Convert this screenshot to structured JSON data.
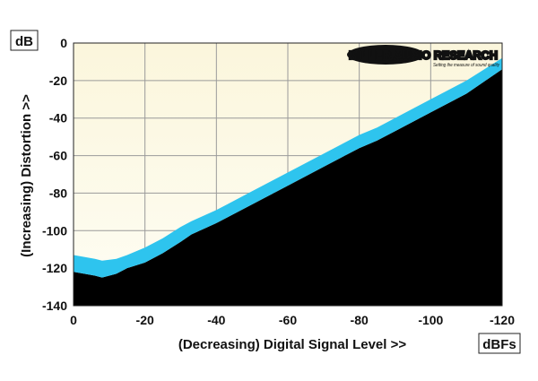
{
  "chart_data": {
    "type": "area",
    "xlabel": "(Decreasing) Digital Signal Level >>",
    "ylabel": "(Increasing) Distortion >>",
    "x_unit": "dBFs",
    "y_unit": "dB",
    "xlim": [
      0,
      -120
    ],
    "ylim": [
      -140,
      0
    ],
    "xticks": [
      "0",
      "-20",
      "-40",
      "-60",
      "-80",
      "-100",
      "-120"
    ],
    "yticks": [
      "0",
      "-20",
      "-40",
      "-60",
      "-80",
      "-100",
      "-120",
      "-140"
    ],
    "x_tick_values": [
      0,
      -20,
      -40,
      -60,
      -80,
      -100,
      -120
    ],
    "y_tick_values": [
      0,
      -20,
      -40,
      -60,
      -80,
      -100,
      -120,
      -140
    ],
    "grid": true,
    "series": [
      {
        "x": [
          0,
          -3,
          -6,
          -8,
          -12,
          -15,
          -20,
          -25,
          -30,
          -33,
          -40,
          -50,
          -60,
          -70,
          -80,
          -85,
          -90,
          -100,
          -110,
          -120
        ],
        "upper": [
          -113,
          -114,
          -115,
          -116,
          -115,
          -113,
          -109,
          -104,
          -98,
          -95,
          -89,
          -79,
          -69,
          -59,
          -49,
          -45,
          -40,
          -30,
          -20,
          -8
        ],
        "lower": [
          -122,
          -123,
          -124,
          -125,
          -123,
          -120,
          -117,
          -112,
          -106,
          -102,
          -96,
          -86,
          -76,
          -66,
          -56,
          -52,
          -47,
          -37,
          -27,
          -14
        ]
      }
    ],
    "colors": {
      "band": "#2ec4ee",
      "below_fill": "#000000",
      "plot_bg_top": "#fbf6dc",
      "plot_bg_bottom": "#fefdf4",
      "grid": "#9a9a9a"
    }
  },
  "logo": {
    "brand": "MILLER AUDIO RESEARCH",
    "tagline": "Setting the measure of sound quality"
  }
}
